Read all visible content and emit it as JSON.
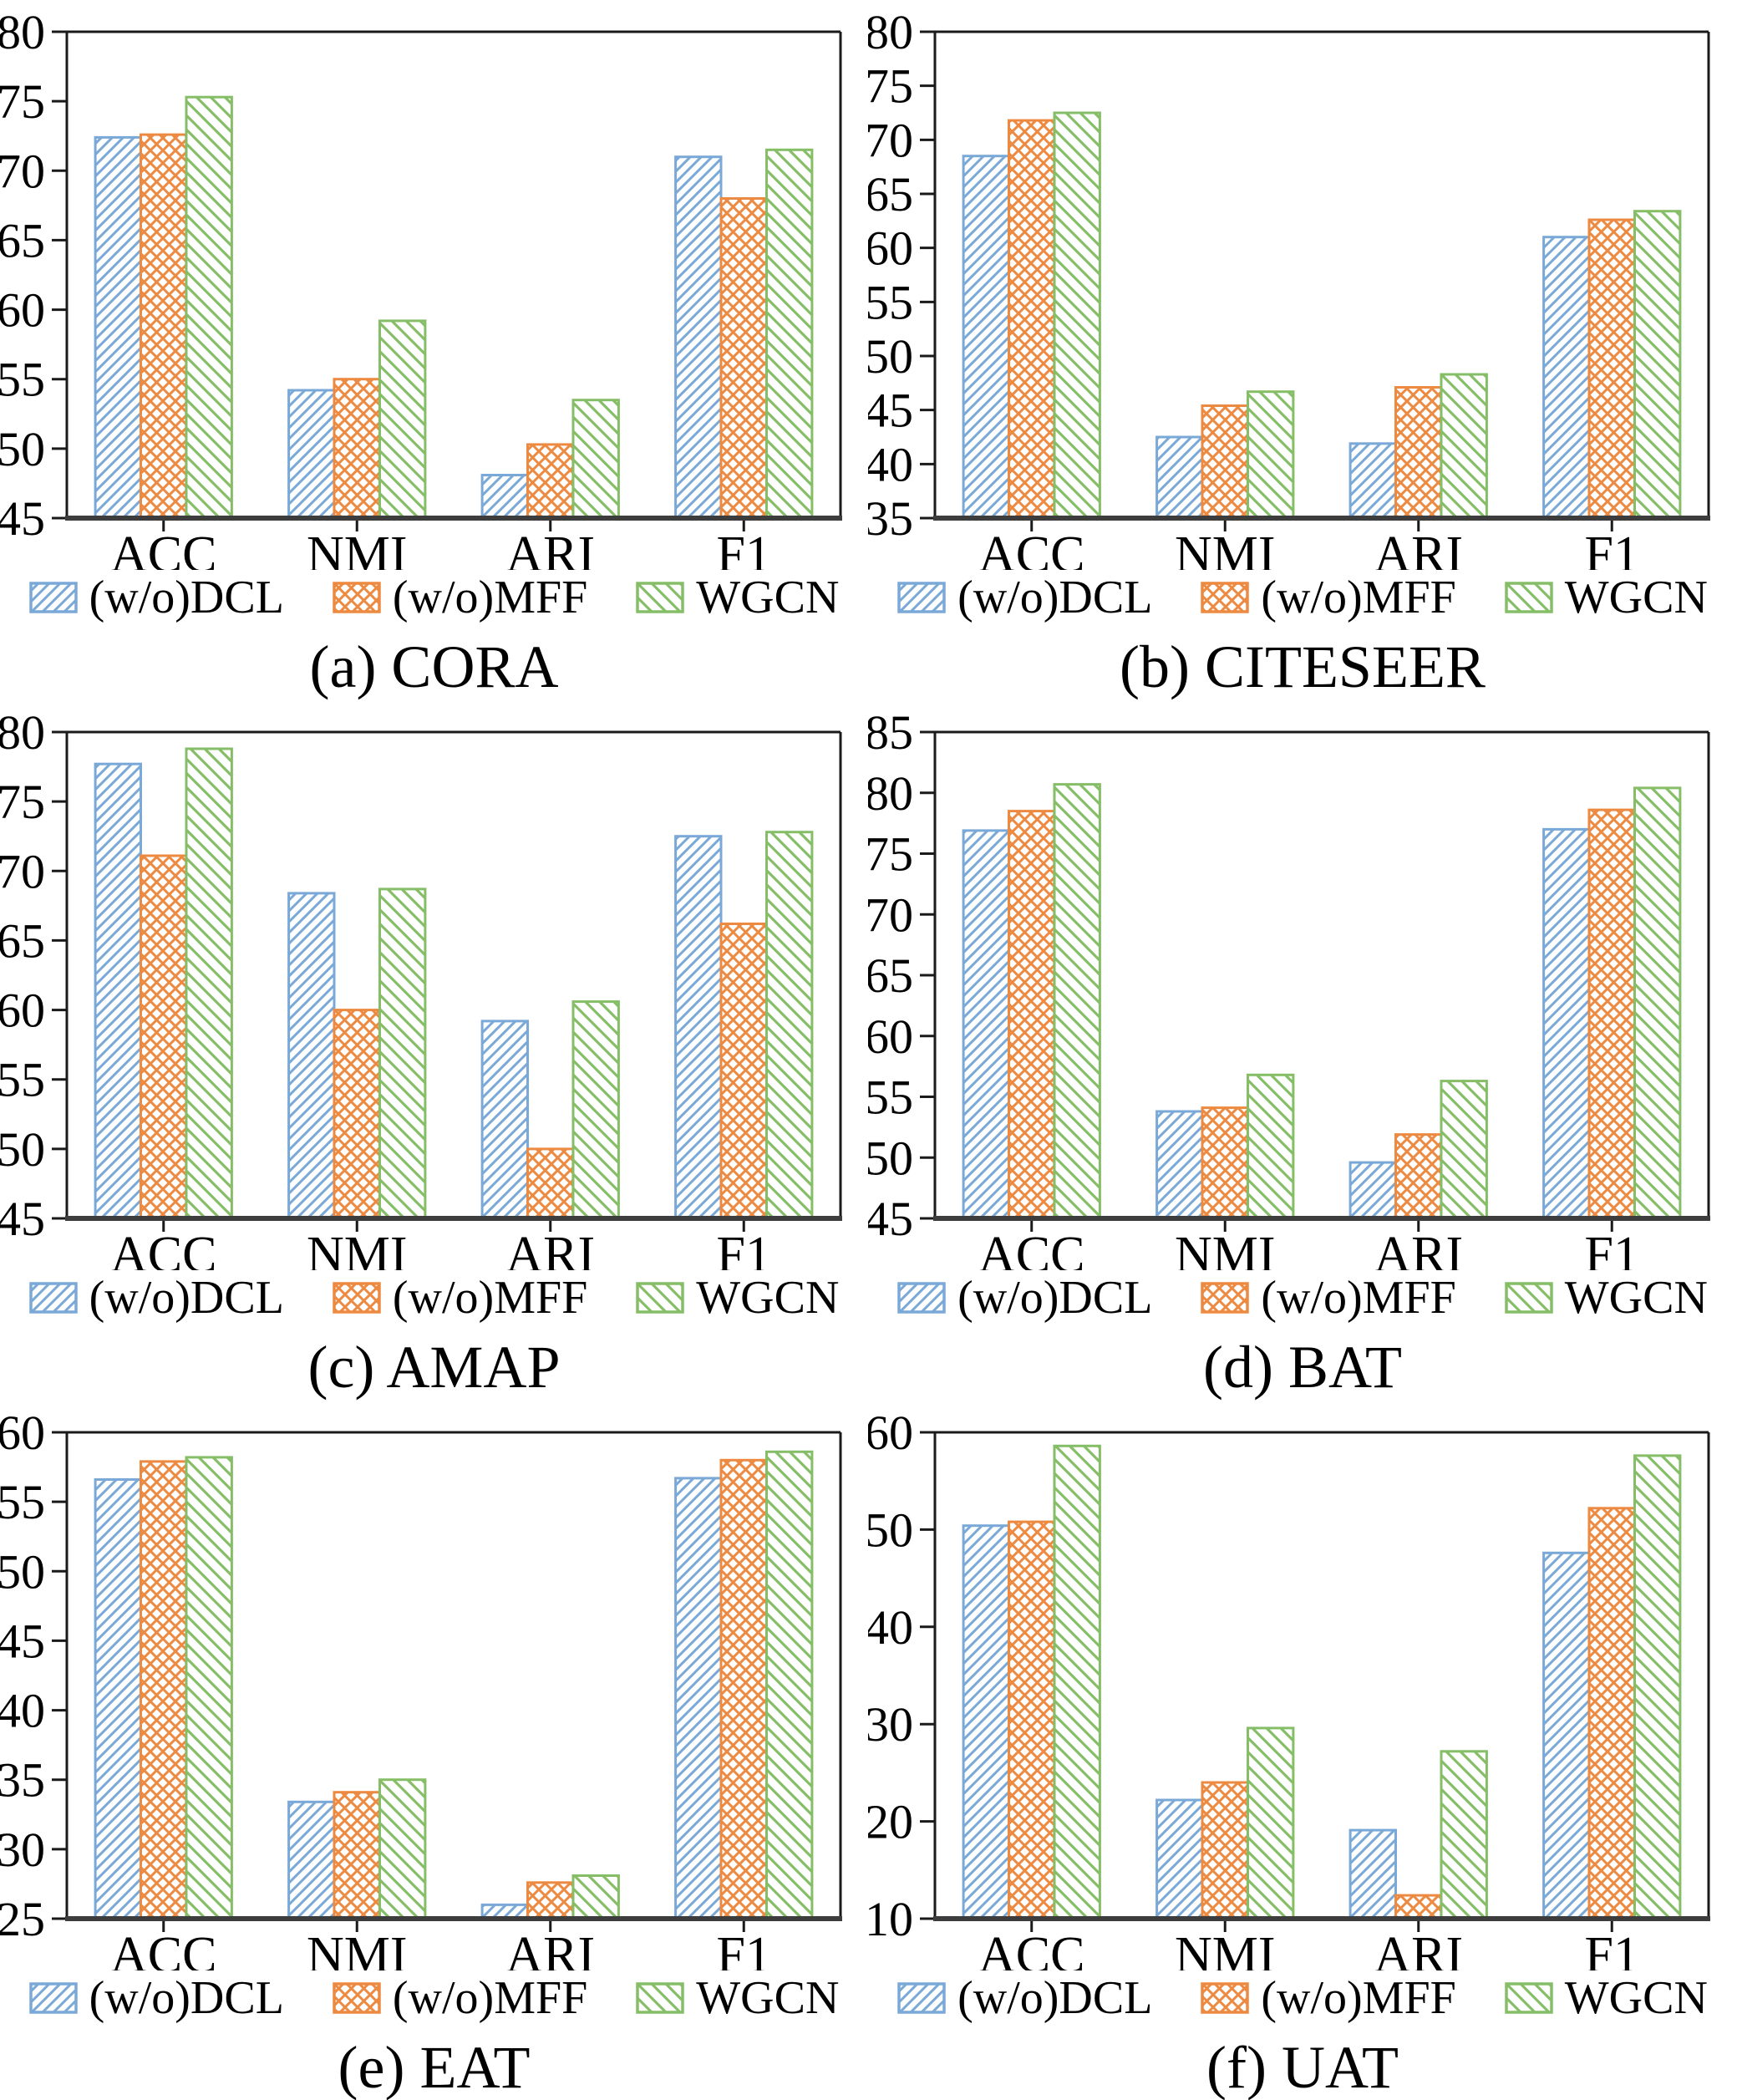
{
  "figure_title": "Ablation study bar charts",
  "series_styles": [
    {
      "name": "(w/o)DCL",
      "color": "#7AA9D8",
      "hatch": "/",
      "pattern_id": "hatch-dcl"
    },
    {
      "name": "(w/o)MFF",
      "color": "#ED8A42",
      "hatch": "x",
      "pattern_id": "hatch-mff"
    },
    {
      "name": "WGCN",
      "color": "#86BE68",
      "hatch": "\\",
      "pattern_id": "hatch-wgcn"
    }
  ],
  "axis": {
    "spine_color": "#1a1a1a",
    "bottom_spine_color": "#3d3d3d",
    "text_color": "#000000"
  },
  "chart_data": [
    {
      "type": "bar",
      "caption": "(a) CORA",
      "categories": [
        "ACC",
        "NMI",
        "ARI",
        "F1"
      ],
      "ylim": [
        45,
        80
      ],
      "ytick_step": 5,
      "grid": false,
      "legend_position": "below",
      "series": [
        {
          "name": "(w/o)DCL",
          "values": [
            72.4,
            54.2,
            48.1,
            71.0
          ]
        },
        {
          "name": "(w/o)MFF",
          "values": [
            72.6,
            55.0,
            50.3,
            68.0
          ]
        },
        {
          "name": "WGCN",
          "values": [
            75.3,
            59.2,
            53.5,
            71.5
          ]
        }
      ]
    },
    {
      "type": "bar",
      "caption": "(b) CITESEER",
      "categories": [
        "ACC",
        "NMI",
        "ARI",
        "F1"
      ],
      "ylim": [
        35,
        80
      ],
      "ytick_step": 5,
      "grid": false,
      "legend_position": "below",
      "series": [
        {
          "name": "(w/o)DCL",
          "values": [
            68.5,
            42.5,
            41.9,
            61.0
          ]
        },
        {
          "name": "(w/o)MFF",
          "values": [
            71.8,
            45.4,
            47.1,
            62.6
          ]
        },
        {
          "name": "WGCN",
          "values": [
            72.5,
            46.7,
            48.3,
            63.4
          ]
        }
      ]
    },
    {
      "type": "bar",
      "caption": "(c) AMAP",
      "categories": [
        "ACC",
        "NMI",
        "ARI",
        "F1"
      ],
      "ylim": [
        45,
        80
      ],
      "ytick_step": 5,
      "grid": false,
      "legend_position": "below",
      "series": [
        {
          "name": "(w/o)DCL",
          "values": [
            77.7,
            68.4,
            59.2,
            72.5
          ]
        },
        {
          "name": "(w/o)MFF",
          "values": [
            71.1,
            60.0,
            50.0,
            66.2
          ]
        },
        {
          "name": "WGCN",
          "values": [
            78.8,
            68.7,
            60.6,
            72.8
          ]
        }
      ]
    },
    {
      "type": "bar",
      "caption": "(d) BAT",
      "categories": [
        "ACC",
        "NMI",
        "ARI",
        "F1"
      ],
      "ylim": [
        45,
        85
      ],
      "ytick_step": 5,
      "grid": false,
      "legend_position": "below",
      "series": [
        {
          "name": "(w/o)DCL",
          "values": [
            76.9,
            53.8,
            49.6,
            77.0
          ]
        },
        {
          "name": "(w/o)MFF",
          "values": [
            78.5,
            54.1,
            51.9,
            78.6
          ]
        },
        {
          "name": "WGCN",
          "values": [
            80.7,
            56.8,
            56.3,
            80.4
          ]
        }
      ]
    },
    {
      "type": "bar",
      "caption": "(e) EAT",
      "categories": [
        "ACC",
        "NMI",
        "ARI",
        "F1"
      ],
      "ylim": [
        25,
        60
      ],
      "ytick_step": 5,
      "grid": false,
      "legend_position": "below",
      "series": [
        {
          "name": "(w/o)DCL",
          "values": [
            56.6,
            33.4,
            26.0,
            56.7
          ]
        },
        {
          "name": "(w/o)MFF",
          "values": [
            57.9,
            34.1,
            27.6,
            58.0
          ]
        },
        {
          "name": "WGCN",
          "values": [
            58.2,
            35.0,
            28.1,
            58.6
          ]
        }
      ]
    },
    {
      "type": "bar",
      "caption": "(f) UAT",
      "categories": [
        "ACC",
        "NMI",
        "ARI",
        "F1"
      ],
      "ylim": [
        10,
        60
      ],
      "ytick_step": 10,
      "grid": false,
      "legend_position": "below",
      "series": [
        {
          "name": "(w/o)DCL",
          "values": [
            50.4,
            22.2,
            19.1,
            47.6
          ]
        },
        {
          "name": "(w/o)MFF",
          "values": [
            50.8,
            24.0,
            12.4,
            52.2
          ]
        },
        {
          "name": "WGCN",
          "values": [
            58.6,
            29.6,
            27.2,
            57.6
          ]
        }
      ]
    }
  ]
}
